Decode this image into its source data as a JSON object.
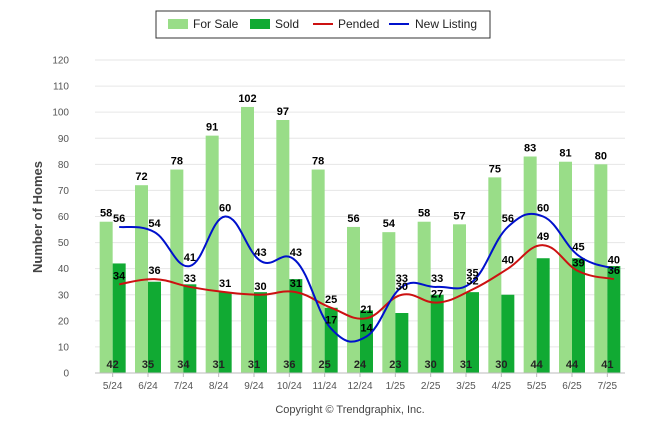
{
  "chart_data": {
    "type": "bar",
    "categories": [
      "5/24",
      "6/24",
      "7/24",
      "8/24",
      "9/24",
      "10/24",
      "11/24",
      "12/24",
      "1/25",
      "2/25",
      "3/25",
      "4/25",
      "5/25",
      "6/25",
      "7/25"
    ],
    "ylabel": "Number of Homes",
    "xlabel": "",
    "ylim": [
      0,
      120
    ],
    "yticks": [
      0,
      10,
      20,
      30,
      40,
      50,
      60,
      70,
      80,
      90,
      100,
      110,
      120
    ],
    "grid": true,
    "legend_position": "top-center",
    "series": [
      {
        "name": "For Sale",
        "kind": "bar",
        "color": "#99dd88",
        "values": [
          58,
          72,
          78,
          91,
          102,
          97,
          78,
          56,
          54,
          58,
          57,
          75,
          83,
          81,
          80
        ]
      },
      {
        "name": "Sold",
        "kind": "bar",
        "color": "#11aa33",
        "values": [
          42,
          35,
          34,
          31,
          31,
          36,
          25,
          24,
          23,
          30,
          31,
          30,
          44,
          44,
          41
        ]
      },
      {
        "name": "Pended",
        "kind": "line",
        "color": "#cc1111",
        "values": [
          34,
          36,
          33,
          31,
          30,
          31,
          25,
          21,
          30,
          27,
          32,
          40,
          49,
          39,
          36
        ]
      },
      {
        "name": "New Listing",
        "kind": "line",
        "color": "#0011cc",
        "values": [
          56,
          54,
          41,
          60,
          43,
          43,
          17,
          14,
          33,
          33,
          35,
          56,
          60,
          45,
          40
        ]
      }
    ],
    "footer": "Copyright © Trendgraphix, Inc."
  }
}
